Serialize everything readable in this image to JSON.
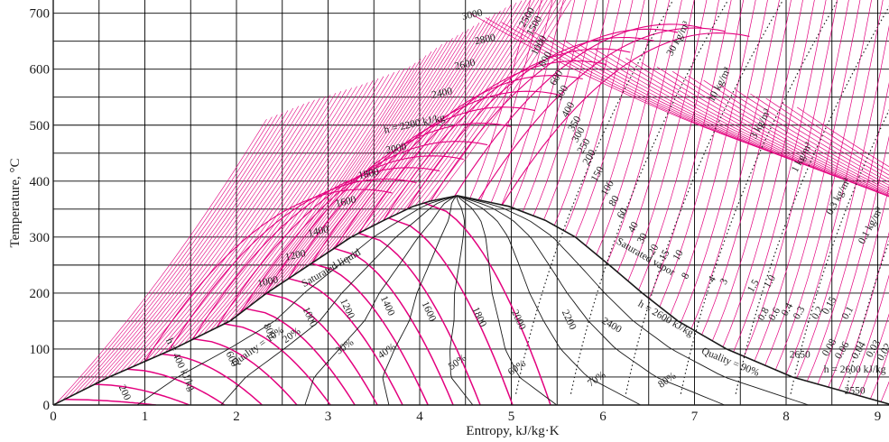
{
  "chart_data": {
    "type": "line",
    "title": "",
    "xlabel": "Entropy, kJ/kg·K",
    "ylabel": "Temperature, °C",
    "xlim": [
      0,
      9.2
    ],
    "ylim": [
      0,
      700
    ],
    "grid": true,
    "x_ticks": [
      0,
      1,
      2,
      3,
      4,
      5,
      6,
      7,
      8,
      9
    ],
    "y_ticks": [
      0,
      100,
      200,
      300,
      400,
      500,
      600,
      700
    ],
    "colors": {
      "ink": "#1a1a1a",
      "magenta": "#e3007e",
      "grid": "#000000"
    },
    "dome": {
      "liquid_line": {
        "name": "Saturated liquid",
        "s": [
          0,
          0.61,
          1.31,
          1.93,
          2.33,
          2.79,
          3.25,
          3.61,
          3.93,
          4.11,
          4.41
        ],
        "T": [
          0,
          50,
          100,
          150,
          200,
          250,
          300,
          330,
          355,
          364,
          374
        ]
      },
      "vapor_line": {
        "name": "Saturated vapor",
        "s": [
          4.41,
          4.71,
          4.97,
          5.37,
          5.7,
          6.07,
          6.43,
          6.82,
          7.35,
          8.07,
          9.16
        ],
        "T": [
          374,
          364,
          355,
          330,
          300,
          250,
          200,
          150,
          100,
          50,
          0
        ]
      }
    },
    "quality_labels": [
      {
        "text": "Quality = 10%",
        "s": 2.25,
        "T": 100
      },
      {
        "text": "20%",
        "s": 2.62,
        "T": 120
      },
      {
        "text": "30%",
        "s": 3.2,
        "T": 100
      },
      {
        "text": "40%",
        "s": 3.66,
        "T": 92
      },
      {
        "text": "50%",
        "s": 4.43,
        "T": 72
      },
      {
        "text": "60%",
        "s": 5.08,
        "T": 62
      },
      {
        "text": "70%",
        "s": 5.95,
        "T": 42
      },
      {
        "text": "80%",
        "s": 6.72,
        "T": 40
      },
      {
        "text": "Quality = 90%",
        "s": 7.38,
        "T": 72
      }
    ],
    "enthalpy_labels_in_dome": [
      {
        "text": "200",
        "s": 0.75,
        "T": 20
      },
      {
        "text": "h = 400 kJ/kg",
        "s": 1.36,
        "T": 70
      },
      {
        "text": "600",
        "s": 1.92,
        "T": 80
      },
      {
        "text": "800",
        "s": 2.33,
        "T": 130
      },
      {
        "text": "1000",
        "s": 2.77,
        "T": 155
      },
      {
        "text": "1200",
        "s": 3.18,
        "T": 170
      },
      {
        "text": "1400",
        "s": 3.62,
        "T": 175
      },
      {
        "text": "1600",
        "s": 4.07,
        "T": 165
      },
      {
        "text": "1800",
        "s": 4.62,
        "T": 155
      },
      {
        "text": "2000",
        "s": 5.05,
        "T": 150
      },
      {
        "text": "2200",
        "s": 5.6,
        "T": 150
      },
      {
        "text": "2400",
        "s": 6.08,
        "T": 138
      },
      {
        "text": "h = 2600 kJ/kg",
        "s": 6.67,
        "T": 150
      },
      {
        "text": "2650",
        "s": 8.15,
        "T": 85
      },
      {
        "text": "h = 2600 kJ/kg",
        "s": 8.75,
        "T": 58
      },
      {
        "text": "2550",
        "s": 8.75,
        "T": 20
      }
    ],
    "enthalpy_labels_liquid": [
      {
        "text": "1000",
        "s": 2.35,
        "T": 215
      },
      {
        "text": "1200",
        "s": 2.65,
        "T": 262
      },
      {
        "text": "1400",
        "s": 2.9,
        "T": 305
      },
      {
        "text": "1600",
        "s": 3.2,
        "T": 358
      },
      {
        "text": "1800",
        "s": 3.45,
        "T": 408
      },
      {
        "text": "2000",
        "s": 3.75,
        "T": 453
      },
      {
        "text": "h = 2200 kJ/kg",
        "s": 3.95,
        "T": 497
      },
      {
        "text": "2400",
        "s": 4.25,
        "T": 552
      },
      {
        "text": "2600",
        "s": 4.5,
        "T": 603
      },
      {
        "text": "2800",
        "s": 4.72,
        "T": 648
      },
      {
        "text": "3000",
        "s": 4.58,
        "T": 692
      }
    ],
    "pressure_labels_mpa": [
      {
        "text": "2500",
        "s": 5.2,
        "T": 690
      },
      {
        "text": "1500",
        "s": 5.28,
        "T": 675
      },
      {
        "text": "1000",
        "s": 5.33,
        "T": 640
      },
      {
        "text": "800",
        "s": 5.4,
        "T": 615
      },
      {
        "text": "600",
        "s": 5.52,
        "T": 582
      },
      {
        "text": "500",
        "s": 5.58,
        "T": 555
      },
      {
        "text": "400",
        "s": 5.65,
        "T": 525
      },
      {
        "text": "350",
        "s": 5.72,
        "T": 500
      },
      {
        "text": "300",
        "s": 5.76,
        "T": 480
      },
      {
        "text": "250",
        "s": 5.82,
        "T": 460
      },
      {
        "text": "200",
        "s": 5.88,
        "T": 440
      },
      {
        "text": "150",
        "s": 5.97,
        "T": 410
      },
      {
        "text": "100",
        "s": 6.08,
        "T": 385
      },
      {
        "text": "80",
        "s": 6.15,
        "T": 362
      },
      {
        "text": "60",
        "s": 6.24,
        "T": 340
      },
      {
        "text": "40",
        "s": 6.36,
        "T": 315
      },
      {
        "text": "30",
        "s": 6.46,
        "T": 295
      },
      {
        "text": "20",
        "s": 6.58,
        "T": 275
      },
      {
        "text": "15",
        "s": 6.7,
        "T": 265
      },
      {
        "text": "10",
        "s": 6.85,
        "T": 265
      },
      {
        "text": "8",
        "s": 6.93,
        "T": 228
      },
      {
        "text": "4",
        "s": 7.22,
        "T": 222
      },
      {
        "text": "3",
        "s": 7.35,
        "T": 218
      },
      {
        "text": "1.5",
        "s": 7.67,
        "T": 210
      },
      {
        "text": "1.0",
        "s": 7.85,
        "T": 218
      },
      {
        "text": "0.8",
        "s": 7.78,
        "T": 160
      },
      {
        "text": "0.6",
        "s": 7.9,
        "T": 160
      },
      {
        "text": "0.4",
        "s": 8.04,
        "T": 168
      },
      {
        "text": "0.3",
        "s": 8.17,
        "T": 162
      },
      {
        "text": "0.2",
        "s": 8.37,
        "T": 162
      },
      {
        "text": "0.15",
        "s": 8.5,
        "T": 175
      },
      {
        "text": "0.1",
        "s": 8.7,
        "T": 162
      },
      {
        "text": "0.08",
        "s": 8.5,
        "T": 100
      },
      {
        "text": "0.06",
        "s": 8.64,
        "T": 95
      },
      {
        "text": "0.04",
        "s": 8.82,
        "T": 95
      },
      {
        "text": "0.03",
        "s": 8.98,
        "T": 98
      },
      {
        "text": "0.02",
        "s": 9.1,
        "T": 92
      }
    ],
    "density_labels": [
      {
        "text": "30 kg/m³",
        "s": 6.85,
        "T": 652
      },
      {
        "text": "10 kg/m³",
        "s": 7.3,
        "T": 570
      },
      {
        "text": "3 kg/m³",
        "s": 7.75,
        "T": 500
      },
      {
        "text": "1 kg/m³",
        "s": 8.2,
        "T": 440
      },
      {
        "text": "0.3 kg/m³",
        "s": 8.6,
        "T": 370
      },
      {
        "text": "0.1 kg/m³",
        "s": 8.95,
        "T": 318
      }
    ]
  }
}
